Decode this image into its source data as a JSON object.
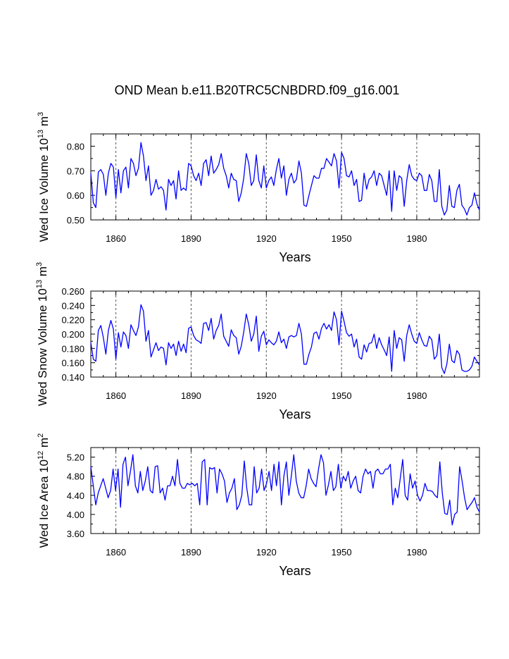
{
  "chart_data": {
    "type": "line",
    "title": "OND Mean b.e11.B20TRC5CNBDRD.f09_g16.001",
    "x_start": 1850,
    "x_end": 2005,
    "x_ticks": [
      1860,
      1890,
      1920,
      1950,
      1980
    ],
    "x_tick_labels": [
      "1860",
      "1890",
      "1920",
      "1950",
      "1980"
    ],
    "panels": [
      {
        "id": "ice-volume",
        "xlabel": "Years",
        "ylabel_prefix": "Wed Ice Volume 10",
        "ylabel_exp": "13",
        "ylabel_unit": " m",
        "ylabel_unit_exp": "3",
        "ylim": [
          0.5,
          0.85
        ],
        "y_ticks": [
          0.5,
          0.6,
          0.7,
          0.8
        ],
        "y_tick_labels": [
          "0.50",
          "0.60",
          "0.70",
          "0.80"
        ],
        "values": [
          0.69,
          0.57,
          0.55,
          0.695,
          0.705,
          0.685,
          0.6,
          0.69,
          0.73,
          0.715,
          0.59,
          0.705,
          0.61,
          0.7,
          0.715,
          0.63,
          0.75,
          0.73,
          0.68,
          0.71,
          0.815,
          0.76,
          0.66,
          0.72,
          0.6,
          0.62,
          0.665,
          0.625,
          0.635,
          0.62,
          0.54,
          0.665,
          0.64,
          0.66,
          0.585,
          0.7,
          0.62,
          0.63,
          0.62,
          0.73,
          0.72,
          0.68,
          0.66,
          0.69,
          0.64,
          0.73,
          0.745,
          0.68,
          0.76,
          0.69,
          0.705,
          0.725,
          0.77,
          0.71,
          0.68,
          0.63,
          0.69,
          0.665,
          0.66,
          0.575,
          0.61,
          0.67,
          0.77,
          0.73,
          0.64,
          0.66,
          0.765,
          0.66,
          0.63,
          0.72,
          0.63,
          0.66,
          0.675,
          0.64,
          0.705,
          0.75,
          0.67,
          0.72,
          0.6,
          0.665,
          0.69,
          0.65,
          0.665,
          0.74,
          0.69,
          0.56,
          0.555,
          0.6,
          0.64,
          0.68,
          0.67,
          0.67,
          0.71,
          0.71,
          0.75,
          0.735,
          0.72,
          0.77,
          0.74,
          0.63,
          0.775,
          0.75,
          0.68,
          0.675,
          0.7,
          0.64,
          0.665,
          0.575,
          0.58,
          0.69,
          0.625,
          0.665,
          0.675,
          0.7,
          0.64,
          0.69,
          0.68,
          0.64,
          0.6,
          0.7,
          0.535,
          0.7,
          0.62,
          0.68,
          0.67,
          0.555,
          0.66,
          0.725,
          0.68,
          0.665,
          0.66,
          0.69,
          0.68,
          0.62,
          0.62,
          0.685,
          0.66,
          0.575,
          0.575,
          0.705,
          0.555,
          0.52,
          0.54,
          0.64,
          0.555,
          0.55,
          0.62,
          0.645,
          0.56,
          0.545,
          0.52,
          0.55,
          0.56,
          0.61,
          0.565,
          0.54
        ]
      },
      {
        "id": "snow-volume",
        "xlabel": "Years",
        "ylabel_prefix": "Wed Snow Volume 10",
        "ylabel_exp": "13",
        "ylabel_unit": " m",
        "ylabel_unit_exp": "3",
        "ylim": [
          0.14,
          0.26
        ],
        "y_ticks": [
          0.14,
          0.16,
          0.18,
          0.2,
          0.22,
          0.24,
          0.26
        ],
        "y_tick_labels": [
          "0.140",
          "0.160",
          "0.180",
          "0.200",
          "0.220",
          "0.240",
          "0.260"
        ],
        "values": [
          0.188,
          0.165,
          0.162,
          0.205,
          0.212,
          0.195,
          0.172,
          0.205,
          0.219,
          0.207,
          0.165,
          0.202,
          0.182,
          0.203,
          0.198,
          0.18,
          0.213,
          0.205,
          0.198,
          0.21,
          0.241,
          0.232,
          0.19,
          0.205,
          0.168,
          0.178,
          0.188,
          0.177,
          0.182,
          0.18,
          0.157,
          0.188,
          0.18,
          0.186,
          0.17,
          0.19,
          0.176,
          0.186,
          0.174,
          0.208,
          0.21,
          0.198,
          0.192,
          0.19,
          0.187,
          0.215,
          0.216,
          0.205,
          0.222,
          0.193,
          0.205,
          0.212,
          0.228,
          0.197,
          0.19,
          0.183,
          0.206,
          0.198,
          0.195,
          0.172,
          0.183,
          0.203,
          0.228,
          0.213,
          0.19,
          0.2,
          0.225,
          0.176,
          0.197,
          0.204,
          0.185,
          0.192,
          0.188,
          0.185,
          0.19,
          0.203,
          0.188,
          0.193,
          0.18,
          0.196,
          0.198,
          0.196,
          0.198,
          0.215,
          0.2,
          0.158,
          0.158,
          0.172,
          0.182,
          0.201,
          0.203,
          0.193,
          0.208,
          0.215,
          0.207,
          0.213,
          0.205,
          0.231,
          0.22,
          0.185,
          0.232,
          0.218,
          0.202,
          0.197,
          0.2,
          0.182,
          0.193,
          0.168,
          0.165,
          0.185,
          0.175,
          0.187,
          0.188,
          0.2,
          0.18,
          0.195,
          0.185,
          0.178,
          0.17,
          0.196,
          0.148,
          0.205,
          0.18,
          0.195,
          0.192,
          0.162,
          0.198,
          0.213,
          0.2,
          0.19,
          0.187,
          0.202,
          0.192,
          0.184,
          0.183,
          0.197,
          0.192,
          0.165,
          0.17,
          0.2,
          0.153,
          0.145,
          0.158,
          0.186,
          0.163,
          0.16,
          0.177,
          0.172,
          0.15,
          0.148,
          0.148,
          0.15,
          0.155,
          0.168,
          0.162,
          0.157
        ]
      },
      {
        "id": "ice-area",
        "xlabel": "Years",
        "ylabel_prefix": "Wed Ice Area 10",
        "ylabel_exp": "12",
        "ylabel_unit": " m",
        "ylabel_unit_exp": "2",
        "ylim": [
          3.6,
          5.4
        ],
        "y_ticks": [
          3.6,
          4.0,
          4.4,
          4.8,
          5.2
        ],
        "y_tick_labels": [
          "3.60",
          "4.00",
          "4.40",
          "4.80",
          "5.20"
        ],
        "values": [
          5.0,
          4.6,
          4.2,
          4.45,
          4.6,
          4.75,
          4.55,
          4.35,
          4.5,
          4.95,
          4.5,
          4.95,
          4.15,
          5.05,
          5.2,
          4.6,
          4.9,
          5.25,
          4.6,
          4.45,
          4.9,
          4.5,
          4.7,
          5.0,
          4.5,
          4.45,
          5.0,
          5.02,
          4.45,
          4.55,
          4.3,
          4.6,
          4.6,
          4.8,
          4.6,
          5.15,
          4.65,
          4.55,
          4.55,
          4.65,
          4.62,
          4.65,
          4.6,
          4.65,
          4.2,
          5.1,
          5.15,
          4.2,
          4.98,
          4.95,
          4.98,
          4.45,
          4.95,
          4.85,
          4.7,
          4.25,
          4.45,
          4.55,
          4.75,
          4.1,
          4.2,
          4.4,
          5.12,
          4.55,
          4.2,
          4.2,
          5.0,
          4.45,
          4.55,
          4.95,
          4.5,
          4.65,
          4.9,
          4.5,
          5.05,
          4.6,
          5.1,
          4.2,
          4.8,
          5.1,
          4.4,
          4.8,
          5.25,
          4.7,
          4.45,
          4.35,
          4.35,
          4.6,
          4.95,
          4.75,
          4.65,
          4.58,
          4.95,
          5.25,
          5.08,
          4.4,
          4.62,
          4.9,
          4.5,
          4.58,
          5.05,
          4.55,
          4.8,
          4.7,
          4.9,
          4.55,
          4.7,
          4.8,
          4.5,
          4.45,
          4.8,
          4.95,
          4.85,
          4.9,
          4.55,
          4.9,
          4.95,
          4.85,
          4.85,
          4.95,
          4.95,
          5.05,
          4.2,
          4.55,
          4.35,
          4.75,
          5.15,
          4.4,
          4.3,
          4.85,
          4.55,
          4.7,
          4.4,
          4.28,
          4.4,
          4.65,
          4.5,
          4.5,
          4.48,
          4.4,
          4.35,
          5.1,
          4.45,
          4.02,
          4.0,
          4.3,
          3.78,
          4.0,
          4.05,
          5.0,
          4.7,
          4.35,
          4.1,
          4.18,
          4.25,
          4.35,
          4.15,
          4.05
        ]
      }
    ]
  }
}
